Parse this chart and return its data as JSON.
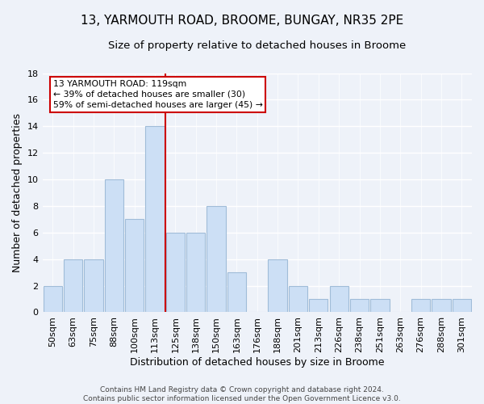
{
  "title": "13, YARMOUTH ROAD, BROOME, BUNGAY, NR35 2PE",
  "subtitle": "Size of property relative to detached houses in Broome",
  "xlabel": "Distribution of detached houses by size in Broome",
  "ylabel": "Number of detached properties",
  "categories": [
    "50sqm",
    "63sqm",
    "75sqm",
    "88sqm",
    "100sqm",
    "113sqm",
    "125sqm",
    "138sqm",
    "150sqm",
    "163sqm",
    "176sqm",
    "188sqm",
    "201sqm",
    "213sqm",
    "226sqm",
    "238sqm",
    "251sqm",
    "263sqm",
    "276sqm",
    "288sqm",
    "301sqm"
  ],
  "values": [
    2,
    4,
    4,
    10,
    7,
    14,
    6,
    6,
    8,
    3,
    0,
    4,
    2,
    1,
    2,
    1,
    1,
    0,
    1,
    1,
    1
  ],
  "bar_color": "#ccdff5",
  "bar_edge_color": "#a0bcd8",
  "marker_line_color": "#cc0000",
  "marker_box_facecolor": "#ffffff",
  "marker_box_edgecolor": "#cc0000",
  "annotation_line1": "13 YARMOUTH ROAD: 119sqm",
  "annotation_line2": "← 39% of detached houses are smaller (30)",
  "annotation_line3": "59% of semi-detached houses are larger (45) →",
  "ylim": [
    0,
    18
  ],
  "yticks": [
    0,
    2,
    4,
    6,
    8,
    10,
    12,
    14,
    16,
    18
  ],
  "marker_bar_index": 5,
  "footer_line1": "Contains HM Land Registry data © Crown copyright and database right 2024.",
  "footer_line2": "Contains public sector information licensed under the Open Government Licence v3.0.",
  "background_color": "#eef2f9",
  "plot_bg_color": "#eef2f9",
  "grid_color": "#ffffff",
  "title_fontsize": 11,
  "subtitle_fontsize": 9.5,
  "axis_label_fontsize": 9,
  "tick_fontsize": 8,
  "footer_fontsize": 6.5
}
